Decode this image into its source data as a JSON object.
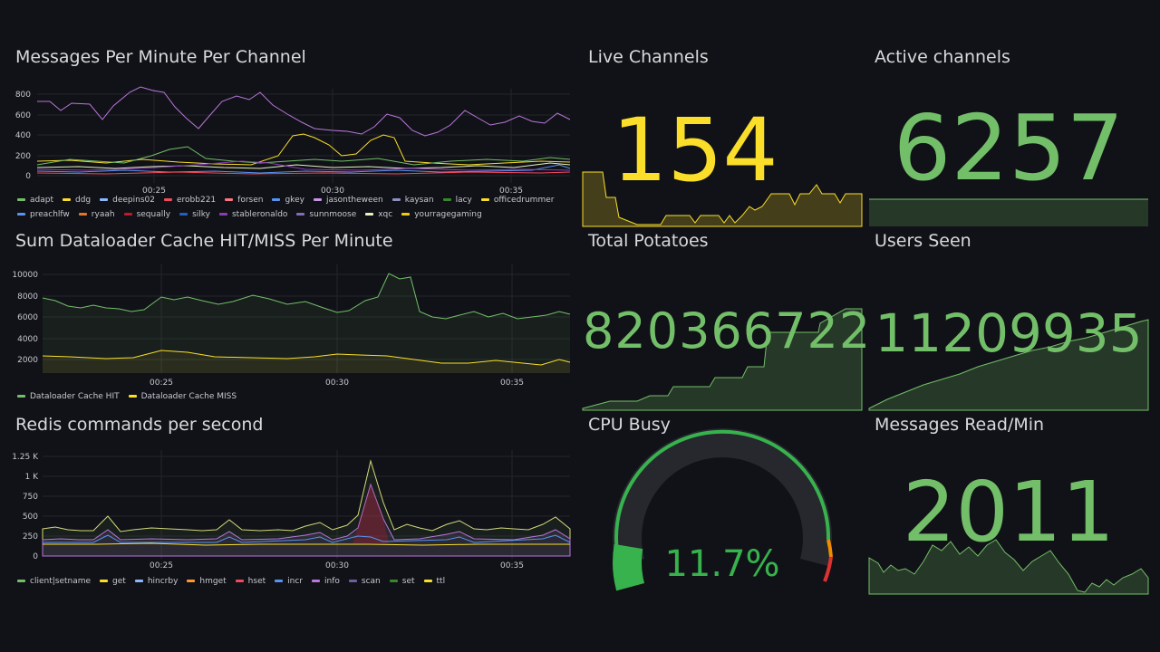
{
  "colors": {
    "green": "#73bf69",
    "yellow": "#fade2a",
    "purple": "#b877d9",
    "gauge_green": "#37b24d",
    "gauge_orange": "#f08c00",
    "gauge_red": "#e03131"
  },
  "panels": {
    "messages": {
      "title": "Messages Per Minute Per Channel",
      "y_ticks": [
        "800",
        "600",
        "400",
        "200",
        "0"
      ],
      "x_ticks": [
        "00:25",
        "00:30",
        "00:35"
      ],
      "legend": [
        {
          "name": "adapt",
          "color": "#73bf69"
        },
        {
          "name": "ddg",
          "color": "#fade2a"
        },
        {
          "name": "deepins02",
          "color": "#8ab8ff"
        },
        {
          "name": "erobb221",
          "color": "#f2495c"
        },
        {
          "name": "forsen",
          "color": "#ff7383"
        },
        {
          "name": "gkey",
          "color": "#5794f2"
        },
        {
          "name": "jasontheween",
          "color": "#ca95e5"
        },
        {
          "name": "kaysan",
          "color": "#8f8fbf"
        },
        {
          "name": "lacy",
          "color": "#37872d"
        },
        {
          "name": "officedrummer",
          "color": "#fade2a"
        },
        {
          "name": "preachlfw",
          "color": "#5794f2"
        },
        {
          "name": "ryaah",
          "color": "#e0752d"
        },
        {
          "name": "sequally",
          "color": "#c4162a"
        },
        {
          "name": "silky",
          "color": "#1f60c4"
        },
        {
          "name": "stableronaldo",
          "color": "#8f3bb8"
        },
        {
          "name": "sunnmoose",
          "color": "#806eb7"
        },
        {
          "name": "xqc",
          "color": "#e5f5c0"
        },
        {
          "name": "yourragegaming",
          "color": "#f2cc0c"
        }
      ]
    },
    "dataloader": {
      "title": "Sum Dataloader Cache HIT/MISS Per Minute",
      "y_ticks": [
        "10000",
        "8000",
        "6000",
        "4000",
        "2000"
      ],
      "x_ticks": [
        "00:25",
        "00:30",
        "00:35"
      ],
      "legend": [
        {
          "name": "Dataloader Cache HIT",
          "color": "#73bf69"
        },
        {
          "name": "Dataloader Cache MISS",
          "color": "#fade2a"
        }
      ]
    },
    "redis": {
      "title": "Redis commands per second",
      "y_ticks": [
        "1.25 K",
        "1 K",
        "750",
        "500",
        "250",
        "0"
      ],
      "x_ticks": [
        "00:25",
        "00:30",
        "00:35"
      ],
      "legend": [
        {
          "name": "client|setname",
          "color": "#73bf69"
        },
        {
          "name": "get",
          "color": "#fade2a"
        },
        {
          "name": "hincrby",
          "color": "#8ab8ff"
        },
        {
          "name": "hmget",
          "color": "#ff9830"
        },
        {
          "name": "hset",
          "color": "#f2495c"
        },
        {
          "name": "incr",
          "color": "#5794f2"
        },
        {
          "name": "info",
          "color": "#b877d9"
        },
        {
          "name": "scan",
          "color": "#705da0"
        },
        {
          "name": "set",
          "color": "#37872d"
        },
        {
          "name": "ttl",
          "color": "#fade2a"
        }
      ]
    },
    "live_channels": {
      "title": "Live Channels",
      "value": "154"
    },
    "active_channels": {
      "title": "Active channels",
      "value": "6257"
    },
    "total_potatoes": {
      "title": "Total Potatoes",
      "value": "820366722"
    },
    "users_seen": {
      "title": "Users Seen",
      "value": "11209935"
    },
    "cpu_busy": {
      "title": "CPU Busy",
      "value": "11.7%",
      "percent": 11.7
    },
    "messages_read": {
      "title": "Messages Read/Min",
      "value": "2011"
    }
  }
}
